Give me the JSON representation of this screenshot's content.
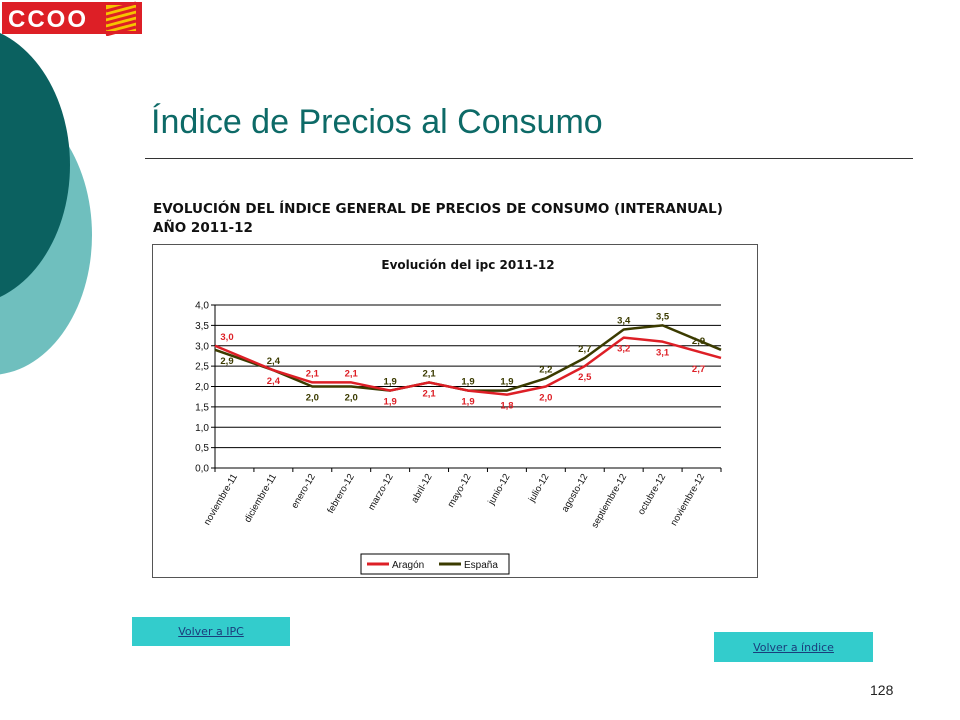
{
  "header": {
    "logo_text": "CCOO",
    "logo_colors": {
      "brand_red": "#dd1f26",
      "stripe_yellow": "#f5c400"
    }
  },
  "slide": {
    "title": "Índice de Precios al Consumo",
    "subtitle_line1": "EVOLUCIÓN DEL ÍNDICE GENERAL DE PRECIOS DE CONSUMO (INTERANUAL)",
    "subtitle_line2": "AÑO 2011-12",
    "page_number": "128",
    "title_color": "#0d6a67",
    "deco_colors": {
      "dark": "#0b6160",
      "light": "#6fbfbe"
    }
  },
  "nav": {
    "back_ipc": "Volver a IPC",
    "back_index": "Volver a índice",
    "button_color": "#33cccc"
  },
  "chart_data": {
    "type": "line",
    "title": "Evolución del ipc 2011-12",
    "categories": [
      "noviembre-11",
      "diciembre-11",
      "enero-12",
      "febrero-12",
      "marzo-12",
      "abril-12",
      "mayo-12",
      "junio-12",
      "julio-12",
      "agosto-12",
      "septiembre-12",
      "octubre-12",
      "noviembre-12"
    ],
    "ylim": [
      0,
      4
    ],
    "yticks": [
      "0,0",
      "0,5",
      "1,0",
      "1,5",
      "2,0",
      "2,5",
      "3,0",
      "3,5",
      "4,0"
    ],
    "grid": true,
    "legend_position": "bottom",
    "series": [
      {
        "name": "Aragón",
        "color": "#dd1f26",
        "values": [
          3.0,
          2.4,
          2.1,
          2.1,
          1.9,
          2.1,
          1.9,
          1.8,
          2.0,
          2.5,
          3.2,
          3.1,
          2.7
        ],
        "labels": [
          "3,0",
          "2,4",
          "2,1",
          "2,1",
          "1,9",
          "2,1",
          "1,9",
          "1,8",
          "2,0",
          "2,5",
          "3,2",
          "3,1",
          "2,7"
        ]
      },
      {
        "name": "España",
        "color": "#3b3b00",
        "values": [
          2.9,
          2.4,
          2.0,
          2.0,
          1.9,
          2.1,
          1.9,
          1.9,
          2.2,
          2.7,
          3.4,
          3.5,
          2.9
        ],
        "labels": [
          "2,9",
          "2,4",
          "2,0",
          "2,0",
          "1,9",
          "2,1",
          "1,9",
          "1,9",
          "2,2",
          "2,7",
          "3,4",
          "3,5",
          "2,9"
        ]
      }
    ]
  }
}
